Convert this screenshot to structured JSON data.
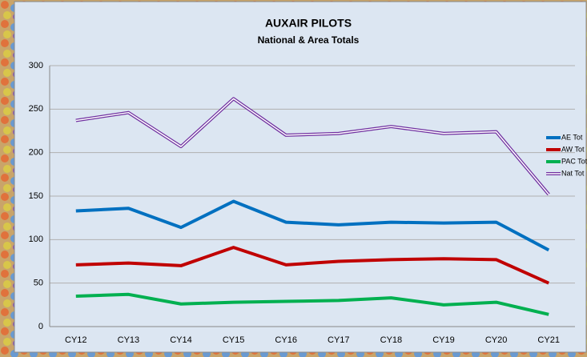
{
  "chart_data": {
    "type": "line",
    "title": "AUXAIR PILOTS",
    "subtitle": "National & Area Totals",
    "categories": [
      "CY12",
      "CY13",
      "CY14",
      "CY15",
      "CY16",
      "CY17",
      "CY18",
      "CY19",
      "CY20",
      "CY21"
    ],
    "series": [
      {
        "name": "AE Tot",
        "color": "#0070c0",
        "values": [
          133,
          136,
          114,
          144,
          120,
          117,
          120,
          119,
          120,
          88
        ]
      },
      {
        "name": "AW Tot",
        "color": "#c00000",
        "values": [
          71,
          73,
          70,
          91,
          71,
          75,
          77,
          78,
          77,
          50
        ]
      },
      {
        "name": "PAC Tot",
        "color": "#00b050",
        "values": [
          35,
          37,
          26,
          28,
          29,
          30,
          33,
          25,
          28,
          14
        ]
      },
      {
        "name": "Nat Tot",
        "color": "#7030a0",
        "values": [
          237,
          246,
          207,
          262,
          220,
          222,
          230,
          222,
          224,
          152
        ]
      }
    ],
    "ylim": [
      0,
      300
    ],
    "yticks": [
      0,
      50,
      100,
      150,
      200,
      250,
      300
    ],
    "grid": true,
    "legend": "right"
  }
}
